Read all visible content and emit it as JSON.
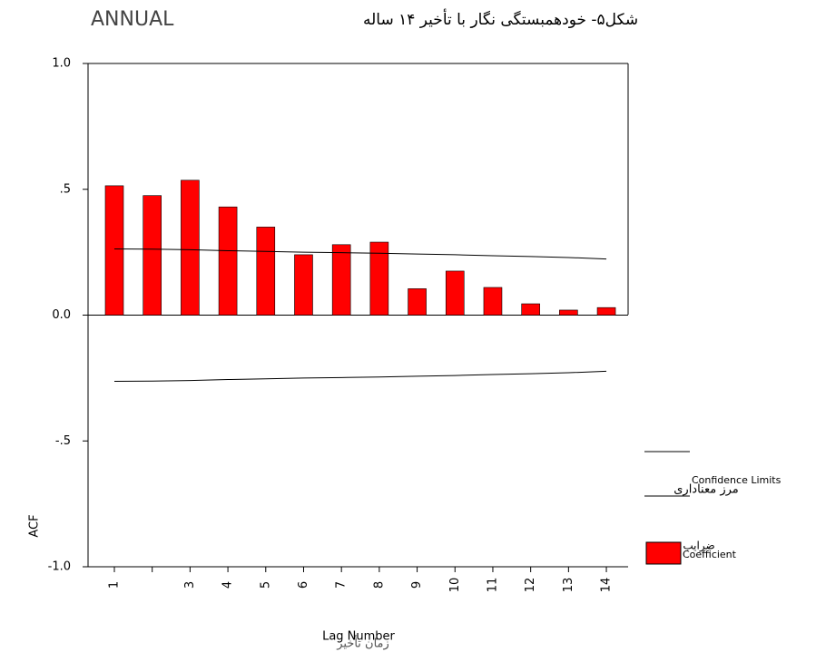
{
  "chart_data": {
    "type": "bar",
    "title": "ANNUAL",
    "subtitle": "شکل۵- خودهمبستگی نگار با تأخیر ۱۴ ساله",
    "y_label": "ACF",
    "x_label": "Lag Number",
    "x_label_alt": "زمان تأخیر",
    "categories": [
      "1",
      null,
      "3",
      "4",
      "5",
      "6",
      "7",
      "8",
      "9",
      "10",
      "11",
      "12",
      "13",
      "14"
    ],
    "series": [
      {
        "name": "Coefficient",
        "name_alt": "ضرایب",
        "color": "#ff0000",
        "values": [
          0.514,
          0.475,
          0.536,
          0.43,
          0.35,
          0.24,
          0.28,
          0.29,
          0.105,
          0.175,
          0.11,
          0.045,
          0.02,
          0.03
        ]
      },
      {
        "name": "Confidence Limits",
        "name_alt": "مرز معناداری",
        "color": "#000000",
        "upper": [
          0.263,
          0.262,
          0.26,
          0.256,
          0.253,
          0.25,
          0.248,
          0.246,
          0.243,
          0.24,
          0.236,
          0.233,
          0.229,
          0.223
        ],
        "lower": [
          -0.263,
          -0.262,
          -0.26,
          -0.256,
          -0.253,
          -0.25,
          -0.248,
          -0.246,
          -0.243,
          -0.24,
          -0.236,
          -0.233,
          -0.229,
          -0.223
        ]
      }
    ],
    "ylim": [
      -1.0,
      1.0
    ],
    "yticks": [
      {
        "value": 1.0,
        "label": "1.0"
      },
      {
        "value": 0.5,
        "label": ".5"
      },
      {
        "value": 0.0,
        "label": "0.0"
      },
      {
        "value": -0.5,
        "label": "-.5"
      },
      {
        "value": -1.0,
        "label": "-1.0"
      }
    ]
  }
}
